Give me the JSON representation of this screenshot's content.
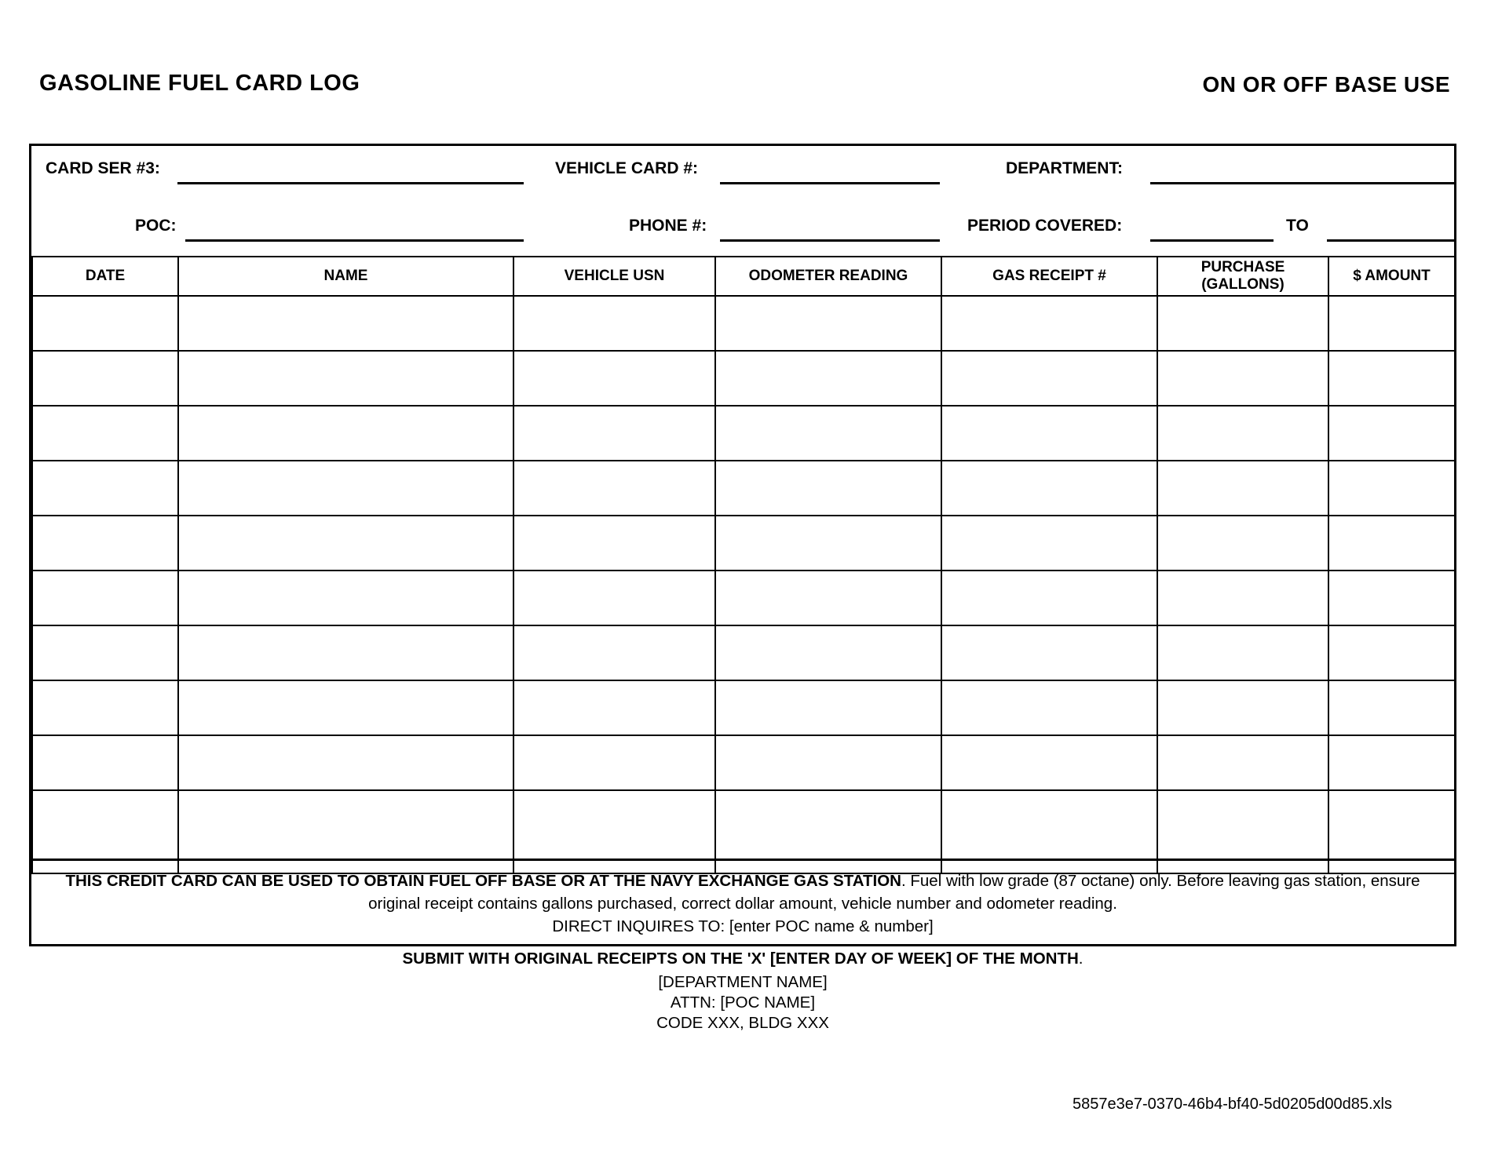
{
  "header": {
    "title": "GASOLINE FUEL CARD LOG",
    "right_label": "ON OR OFF BASE USE"
  },
  "fields": {
    "card_ser": {
      "label": "CARD SER #3:"
    },
    "vehicle_card": {
      "label": "VEHICLE CARD #:"
    },
    "department": {
      "label": "DEPARTMENT:"
    },
    "poc": {
      "label": "POC:"
    },
    "phone": {
      "label": "PHONE #:"
    },
    "period_covered": {
      "label": "PERIOD COVERED:",
      "to_label": "TO"
    }
  },
  "table": {
    "headers": [
      "DATE",
      "NAME",
      "VEHICLE USN",
      "ODOMETER READING",
      "GAS RECEIPT #",
      "PURCHASE\n(GALLONS)",
      "$ AMOUNT"
    ],
    "rows": [
      [
        "",
        "",
        "",
        "",
        "",
        "",
        ""
      ],
      [
        "",
        "",
        "",
        "",
        "",
        "",
        ""
      ],
      [
        "",
        "",
        "",
        "",
        "",
        "",
        ""
      ],
      [
        "",
        "",
        "",
        "",
        "",
        "",
        ""
      ],
      [
        "",
        "",
        "",
        "",
        "",
        "",
        ""
      ],
      [
        "",
        "",
        "",
        "",
        "",
        "",
        ""
      ],
      [
        "",
        "",
        "",
        "",
        "",
        "",
        ""
      ],
      [
        "",
        "",
        "",
        "",
        "",
        "",
        ""
      ],
      [
        "",
        "",
        "",
        "",
        "",
        "",
        ""
      ],
      [
        "",
        "",
        "",
        "",
        "",
        "",
        ""
      ]
    ]
  },
  "note": {
    "bold": "THIS CREDIT CARD CAN BE USED TO OBTAIN FUEL OFF BASE OR AT THE NAVY EXCHANGE GAS STATION",
    "regular": ".  Fuel with low grade (87 octane) only.  Before leaving gas station, ensure original receipt contains gallons purchased, correct dollar amount, vehicle number and odometer reading.",
    "line3": "DIRECT INQUIRES TO: [enter POC name & number]"
  },
  "footer": {
    "submit_bold": "SUBMIT WITH ORIGINAL RECEIPTS ON THE 'X' [ENTER DAY OF WEEK] OF THE MONTH",
    "submit_tail": ".",
    "department_name": "[DEPARTMENT NAME]",
    "attn": "ATTN: [POC NAME]",
    "code": "CODE XXX, BLDG XXX",
    "filename": "5857e3e7-0370-46b4-bf40-5d0205d00d85.xls"
  }
}
